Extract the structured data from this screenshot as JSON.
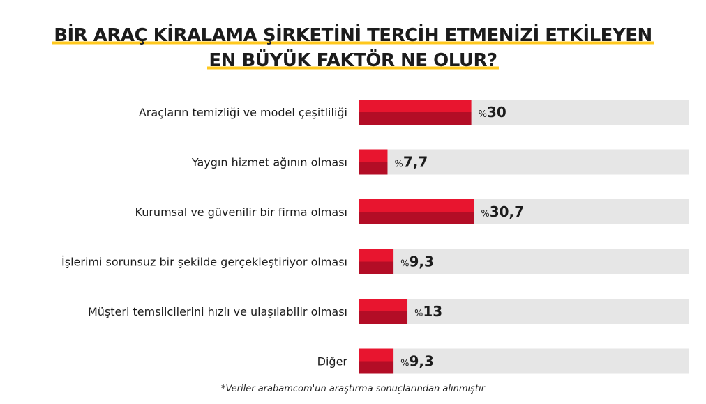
{
  "chart_data": {
    "type": "bar",
    "orientation": "horizontal",
    "title_lines": [
      "BİR ARAÇ KİRALAMA ŞİRKETİNİ TERCİH ETMENİZİ ETKİLEYEN",
      "EN BÜYÜK FAKTÖR NE OLUR?"
    ],
    "categories": [
      "Araçların temizliği ve model çeşitliliği",
      "Yaygın hizmet ağının olması",
      "Kurumsal ve güvenilir bir firma olması",
      "İşlerimi sorunsuz bir şekilde gerçekleştiriyor olması",
      "Müşteri temsilcilerini hızlı ve ulaşılabilir olması",
      "Diğer"
    ],
    "values": [
      30,
      7.7,
      30.7,
      9.3,
      13,
      9.3
    ],
    "value_labels": [
      "30",
      "7,7",
      "30,7",
      "9,3",
      "13",
      "9,3"
    ],
    "value_prefix": "%",
    "xlim": [
      0,
      88
    ],
    "grid": false,
    "legend": "none"
  },
  "footnote": "*Veriler arabamcom'un araştırma sonuçlarından alınmıştır",
  "colors": {
    "bar_top": "#e8152f",
    "bar_bottom": "#b30d26",
    "track": "#e6e6e6",
    "text": "#1c1c1c",
    "title_underline": "#ffc81e"
  }
}
